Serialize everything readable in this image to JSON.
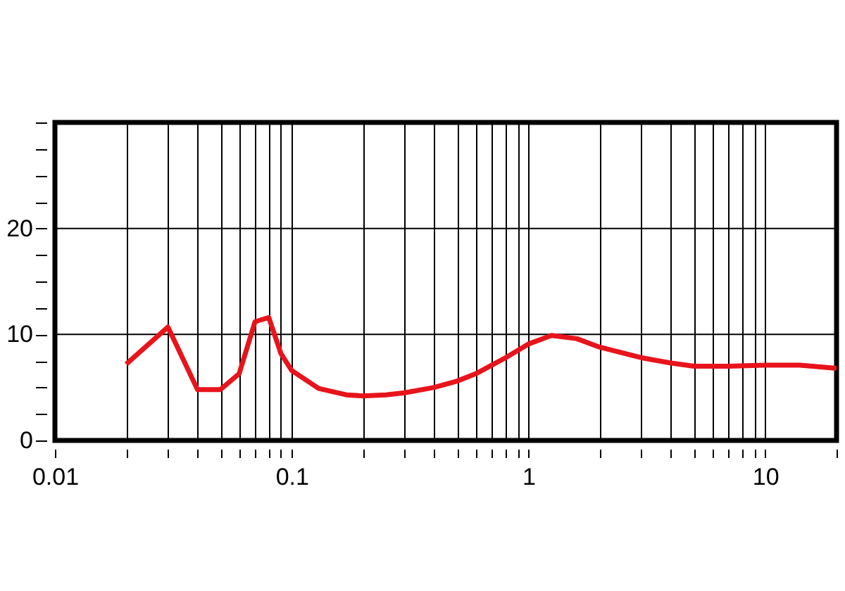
{
  "chart_data": {
    "type": "line",
    "log": "x",
    "grid": true,
    "xlim": [
      0.01,
      20
    ],
    "ylim": [
      0,
      30
    ],
    "xticks": [
      0.01,
      {
        "value": 0.02,
        "label": null
      },
      {
        "value": 0.03,
        "label": null
      },
      {
        "value": 0.04,
        "label": null
      },
      {
        "value": 0.05,
        "label": null
      },
      {
        "value": 0.06,
        "label": null
      },
      {
        "value": 0.07,
        "label": null
      },
      {
        "value": 0.08,
        "label": null
      },
      {
        "value": 0.09,
        "label": null
      },
      0.1,
      {
        "value": 0.2,
        "label": null
      },
      {
        "value": 0.3,
        "label": null
      },
      {
        "value": 0.4,
        "label": null
      },
      {
        "value": 0.5,
        "label": null
      },
      {
        "value": 0.6,
        "label": null
      },
      {
        "value": 0.7,
        "label": null
      },
      {
        "value": 0.8,
        "label": null
      },
      {
        "value": 0.9,
        "label": null
      },
      1,
      {
        "value": 2,
        "label": null
      },
      {
        "value": 3,
        "label": null
      },
      {
        "value": 4,
        "label": null
      },
      {
        "value": 5,
        "label": null
      },
      {
        "value": 6,
        "label": null
      },
      {
        "value": 7,
        "label": null
      },
      {
        "value": 8,
        "label": null
      },
      {
        "value": 9,
        "label": null
      },
      10,
      {
        "value": 20,
        "label": null
      }
    ],
    "yticks": [
      0,
      {
        "value": 2.5,
        "label": null
      },
      {
        "value": 5,
        "label": null
      },
      {
        "value": 7.5,
        "label": null
      },
      10,
      {
        "value": 12.5,
        "label": null
      },
      {
        "value": 15,
        "label": null
      },
      {
        "value": 17.5,
        "label": null
      },
      20,
      {
        "value": 22.5,
        "label": null
      },
      {
        "value": 25,
        "label": null
      },
      {
        "value": 27.5,
        "label": null
      },
      {
        "value": 30,
        "label": null
      }
    ],
    "marker": "none",
    "line_style": "solid",
    "series": [
      {
        "color": "#e8141c",
        "x": [
          0.02,
          0.03,
          0.04,
          0.05,
          0.06,
          0.07,
          0.08,
          0.09,
          0.1,
          0.13,
          0.17,
          0.2,
          0.25,
          0.3,
          0.4,
          0.5,
          0.6,
          0.8,
          1.0,
          1.25,
          1.6,
          2,
          3,
          4,
          5,
          7,
          10,
          14,
          20
        ],
        "values": [
          7.2,
          10.7,
          4.8,
          4.8,
          6.3,
          11.2,
          11.6,
          8.2,
          6.6,
          4.9,
          4.3,
          4.2,
          4.3,
          4.5,
          5.0,
          5.6,
          6.3,
          7.8,
          9.1,
          9.9,
          9.6,
          8.8,
          7.8,
          7.3,
          7.0,
          7.0,
          7.1,
          7.1,
          6.8
        ]
      }
    ]
  }
}
